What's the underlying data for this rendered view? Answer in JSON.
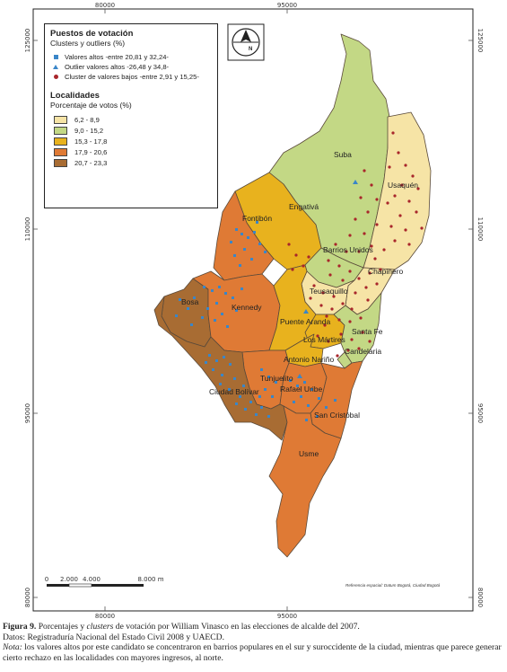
{
  "grid": {
    "top_labels": [
      "80000",
      "95000"
    ],
    "bottom_labels": [
      "80000",
      "95000"
    ],
    "left_labels": [
      "125000",
      "110000",
      "95000",
      "80000"
    ],
    "right_labels": [
      "125000",
      "110000",
      "95000",
      "80000"
    ]
  },
  "legend": {
    "points_title": "Puestos de votación",
    "points_subtitle": "Clusters y outliers (%)",
    "points": [
      {
        "label": "Valores altos -entre 20,81 y 32,24-",
        "symbol": "square",
        "color": "#3a86c8"
      },
      {
        "label": "Outlier valores altos -26,48 y 34,8-",
        "symbol": "triangle",
        "color": "#3a86c8"
      },
      {
        "label": "Cluster de valores bajos -entre 2,91 y 15,25-",
        "symbol": "circle",
        "color": "#a8262b"
      }
    ],
    "areas_title": "Localidades",
    "areas_subtitle": "Porcentaje de votos (%)",
    "classes": [
      {
        "label": "6,2 - 8,9",
        "color": "#f6e4a6"
      },
      {
        "label": "9,0 - 15,2",
        "color": "#c3d885"
      },
      {
        "label": "15,3 - 17,8",
        "color": "#e8b21e"
      },
      {
        "label": "17,9 - 20,6",
        "color": "#df7a35"
      },
      {
        "label": "20,7 - 23,3",
        "color": "#a86c33"
      }
    ]
  },
  "north_arrow": {
    "label": "N"
  },
  "localities": [
    {
      "name": "Suba",
      "class": 1
    },
    {
      "name": "Usaquén",
      "class": 0
    },
    {
      "name": "Engativá",
      "class": 2
    },
    {
      "name": "Fontibón",
      "class": 3
    },
    {
      "name": "Barrios Unidos",
      "class": 1
    },
    {
      "name": "Chapinero",
      "class": 0
    },
    {
      "name": "Teusaquillo",
      "class": 0
    },
    {
      "name": "Bosa",
      "class": 4
    },
    {
      "name": "Kennedy",
      "class": 3
    },
    {
      "name": "Puente Aranda",
      "class": 2
    },
    {
      "name": "Los Mártires",
      "class": 2
    },
    {
      "name": "Santa Fe",
      "class": 1
    },
    {
      "name": "Candelaria",
      "class": 1
    },
    {
      "name": "Antonio Nariño",
      "class": 2
    },
    {
      "name": "Tunjuelito",
      "class": 3
    },
    {
      "name": "Rafael Uribe",
      "class": 3
    },
    {
      "name": "Ciudad Bolívar",
      "class": 4
    },
    {
      "name": "San Cristóbal",
      "class": 3
    },
    {
      "name": "Usme",
      "class": 3
    }
  ],
  "scale_bar": {
    "labels": [
      "0",
      "2.000",
      "4.000",
      "8.000 m"
    ]
  },
  "reference_note": "Referencia espacial: Datum Bogotá, Ciudad Bogotá",
  "caption": {
    "figure_label": "Figura 9.",
    "title_a": "Porcentajes y ",
    "title_italic": "clusters",
    "title_b": " de votación por William Vinasco en las elecciones de alcalde del 2007.",
    "sources": "Datos: Registraduría Nacional del Estado Civil 2008 y UAECD.",
    "note_label": "Nota:",
    "note_text": " los valores altos por este candidato se concentraron en barrios populares en el sur y suroccidente de la ciudad, mientras que parece generar cierto rechazo en las localidades con mayores ingresos, al norte."
  }
}
